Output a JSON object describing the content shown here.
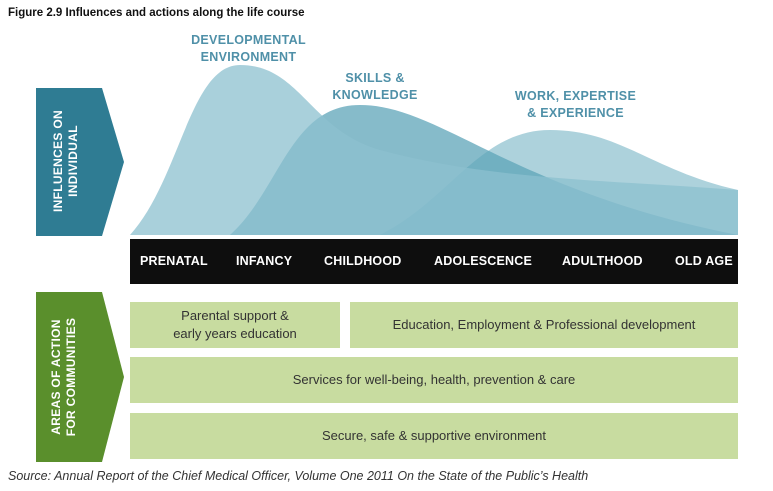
{
  "figure": {
    "title": "Figure 2.9  Influences and actions along the life course",
    "source": "Source: Annual Report of the Chief Medical Officer, Volume One 2011 On the State of the Public’s Health"
  },
  "influences": {
    "label_line1": "INFLUENCES ON",
    "label_line2": "INDIVIDUAL",
    "color": "#2f7c93",
    "waves": [
      {
        "label_line1": "DEVELOPMENTAL",
        "label_line2": "ENVIRONMENT"
      },
      {
        "label_line1": "SKILLS &",
        "label_line2": "KNOWLEDGE"
      },
      {
        "label_line1": "WORK, EXPERTISE",
        "label_line2": "& EXPERIENCE"
      }
    ]
  },
  "stages": [
    "PRENATAL",
    "INFANCY",
    "CHILDHOOD",
    "ADOLESCENCE",
    "ADULTHOOD",
    "OLD AGE"
  ],
  "actions": {
    "label_line1": "AREAS OF ACTION",
    "label_line2": "FOR COMMUNITIES",
    "color": "#5a8f2c",
    "box_color": "#c8dca0",
    "items": [
      {
        "text_line1": "Parental support &",
        "text_line2": "early years education"
      },
      {
        "text": "Education, Employment & Professional development"
      },
      {
        "text": "Services for well-being, health, prevention & care"
      },
      {
        "text": "Secure, safe & supportive environment"
      }
    ]
  }
}
